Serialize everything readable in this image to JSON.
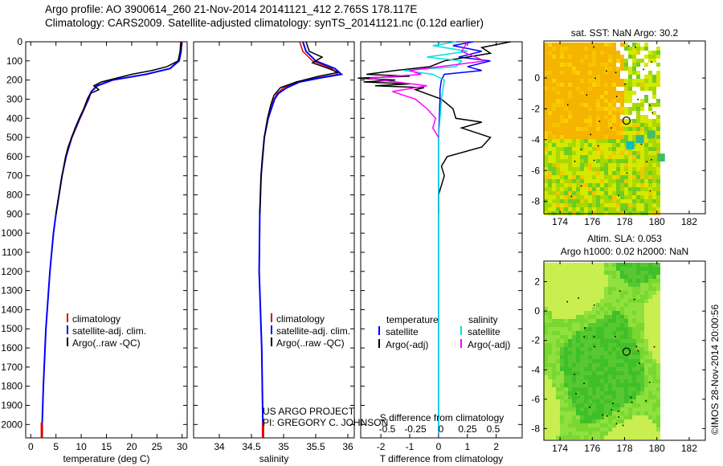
{
  "header": {
    "line1": "Argo profile: AO 3900614_260 21-Nov-2014 20141121_412 2.765S 178.117E",
    "line2": "Climatology: CARS2009. Satellite-adjusted climatology: synTS_20141121.nc (0.12d earlier)"
  },
  "credit": "©IMOS 28-Nov-2014 20:00:56",
  "project": {
    "line1": "US ARGO PROJECT",
    "line2": "PI: GREGORY C. JOHNSON"
  },
  "colors": {
    "climatology": "#e00000",
    "satellite": "#0000ff",
    "argo": "#000000",
    "sat_salinity": "#00e0e0",
    "argo_salinity": "#ff00ff"
  },
  "chart_data": [
    {
      "type": "line",
      "panel": "temperature",
      "xlabel": "temperature (deg C)",
      "ylabel": "",
      "xlim": [
        -1,
        31
      ],
      "ylim": [
        2070,
        0
      ],
      "xticks": [
        0,
        5,
        10,
        15,
        20,
        25,
        30
      ],
      "yticks": [
        0,
        100,
        200,
        300,
        400,
        500,
        600,
        700,
        800,
        900,
        1000,
        1100,
        1200,
        1300,
        1400,
        1500,
        1600,
        1700,
        1800,
        1900,
        2000
      ],
      "legend": [
        "climatology",
        "satellite-adj. clim.",
        "Argo(..raw -QC)"
      ],
      "series": [
        {
          "name": "climatology",
          "depth": [
            0,
            50,
            100,
            140,
            170,
            200,
            230,
            260,
            300,
            400,
            500,
            600,
            700,
            800,
            900,
            1000,
            1200,
            1500,
            1800,
            2050
          ],
          "values": [
            29.7,
            29.6,
            29.3,
            27.5,
            23,
            16,
            13,
            12,
            11.5,
            9.8,
            8.2,
            7.0,
            6.2,
            5.6,
            5.0,
            4.5,
            3.8,
            3.0,
            2.5,
            2.2
          ]
        },
        {
          "name": "satellite-adj. clim.",
          "depth": [
            0,
            50,
            100,
            140,
            170,
            200,
            230,
            260,
            300,
            400,
            500,
            600,
            700,
            800,
            900,
            1000,
            1200,
            1500,
            1800,
            2050
          ],
          "values": [
            29.9,
            29.8,
            29.4,
            27.6,
            22.8,
            16.2,
            13.2,
            12.0,
            11.4,
            9.7,
            8.1,
            7.0,
            6.2,
            5.6,
            5.0,
            4.5,
            3.8,
            3.0,
            2.5,
            2.2
          ]
        },
        {
          "name": "Argo(..raw -QC)",
          "depth": [
            0,
            50,
            100,
            130,
            150,
            170,
            190,
            210,
            230,
            250,
            270,
            300,
            350,
            400,
            450,
            500,
            550,
            600,
            700,
            800,
            900
          ],
          "values": [
            29.8,
            29.6,
            29.2,
            27,
            24,
            20,
            17,
            14,
            12.5,
            13.5,
            11.8,
            11.2,
            10.5,
            9.6,
            8.8,
            8.1,
            7.4,
            6.9,
            6.2,
            5.6,
            5.0
          ]
        }
      ]
    },
    {
      "type": "line",
      "panel": "salinity",
      "xlabel": "salinity",
      "xlim": [
        33.6,
        36.1
      ],
      "ylim": [
        2070,
        0
      ],
      "xticks": [
        34,
        34.5,
        35,
        35.5,
        36
      ],
      "legend": [
        "climatology",
        "satellite-adj. clim.",
        "Argo(..raw -QC)"
      ],
      "series": [
        {
          "name": "climatology",
          "depth": [
            0,
            50,
            100,
            140,
            170,
            190,
            210,
            240,
            270,
            300,
            400,
            500,
            700,
            900,
            1200,
            1600,
            2050
          ],
          "values": [
            35.25,
            35.3,
            35.45,
            35.75,
            35.85,
            35.5,
            35.2,
            35.0,
            34.9,
            34.85,
            34.75,
            34.7,
            34.65,
            34.63,
            34.62,
            34.66,
            34.68
          ]
        },
        {
          "name": "satellite-adj. clim.",
          "depth": [
            0,
            50,
            100,
            140,
            170,
            190,
            210,
            240,
            270,
            300,
            400,
            500,
            700,
            900,
            1200,
            1600,
            2050
          ],
          "values": [
            35.3,
            35.35,
            35.5,
            35.8,
            35.9,
            35.55,
            35.25,
            35.05,
            34.92,
            34.86,
            34.76,
            34.7,
            34.65,
            34.63,
            34.62,
            34.66,
            34.68
          ]
        },
        {
          "name": "Argo(..raw -QC)",
          "depth": [
            0,
            50,
            80,
            110,
            140,
            160,
            180,
            210,
            240,
            280,
            330,
            400,
            500,
            600,
            700,
            800,
            900
          ],
          "values": [
            35.35,
            35.4,
            35.6,
            35.45,
            35.7,
            35.85,
            35.55,
            35.2,
            34.95,
            34.85,
            34.8,
            34.75,
            34.7,
            34.67,
            34.65,
            34.64,
            34.63
          ]
        }
      ]
    },
    {
      "type": "line",
      "panel": "difference",
      "xlabel": "T difference from climatology",
      "xlabel2": "S difference from climatology",
      "xlim": [
        -2.7,
        2.9
      ],
      "ylim": [
        2070,
        0
      ],
      "xticks": [
        -2,
        -1,
        0,
        1,
        2
      ],
      "xticks_s": [
        "-0.5",
        "-0.25",
        "0",
        "0.25",
        "0.5"
      ],
      "legend_headers": [
        "temperature",
        "salinity"
      ],
      "legend": [
        "satellite",
        "Argo(-adj)",
        "satellite",
        "Argo(-adj)"
      ],
      "series": [
        {
          "name": "satellite",
          "depth": [
            0,
            20,
            50,
            80,
            100,
            130,
            150,
            170,
            200,
            250,
            300,
            500,
            1000,
            1500,
            2050
          ],
          "values": [
            1.2,
            0.5,
            1.5,
            0.7,
            1.8,
            1.0,
            1.5,
            0.2,
            0.1,
            0.05,
            0.05,
            0,
            0,
            0,
            0
          ]
        },
        {
          "name": "Argo(-adj)",
          "depth": [
            0,
            30,
            60,
            100,
            130,
            150,
            170,
            180,
            190,
            200,
            210,
            220,
            230,
            240,
            250,
            300,
            350,
            400,
            420,
            450,
            500,
            550,
            600,
            650,
            700,
            800,
            900
          ],
          "values": [
            2.5,
            1.5,
            1.8,
            0.2,
            -0.3,
            -1.5,
            -2.5,
            -1.0,
            -2.8,
            -1.5,
            -2.6,
            -1.0,
            -2.2,
            -0.5,
            -0.8,
            0.1,
            0.5,
            0.6,
            1.5,
            0.8,
            1.8,
            1.5,
            0.3,
            0.1,
            0.2,
            0,
            0
          ]
        },
        {
          "name": "satellite",
          "depth": [
            0,
            20,
            50,
            80,
            100,
            130,
            150,
            170,
            200,
            300,
            500,
            1000,
            2050
          ],
          "values": [
            0.3,
            -0.1,
            0.5,
            -0.2,
            0.4,
            0.3,
            -0.6,
            -0.1,
            0.1,
            0.05,
            0,
            0,
            0
          ]
        },
        {
          "name": "Argo(-adj)",
          "depth": [
            0,
            50,
            100,
            150,
            170,
            190,
            200,
            230,
            260,
            300,
            350,
            400,
            450,
            500
          ],
          "values": [
            0.5,
            0.4,
            0.8,
            -0.5,
            -0.3,
            -1.2,
            -1.0,
            -0.2,
            -0.8,
            -0.4,
            -0.2,
            -0.05,
            -0.1,
            0
          ]
        }
      ]
    },
    {
      "type": "heatmap",
      "panel": "sst_map",
      "title": "sat. SST: NaN Argo: 30.2",
      "xticks": [
        174,
        176,
        178,
        180,
        182
      ],
      "yticks": [
        0,
        -2,
        -4,
        -6,
        -8
      ],
      "xlim": [
        173,
        183
      ],
      "ylim": [
        -8.8,
        2.4
      ],
      "marker": [
        178.117,
        -2.765
      ]
    },
    {
      "type": "heatmap",
      "panel": "sla_map",
      "title": "Altim. SLA: 0.053",
      "subtitle": "Argo h1000: 0.02 h2000: NaN",
      "xticks": [
        174,
        176,
        178,
        180,
        182
      ],
      "yticks": [
        2,
        0,
        -2,
        -4,
        -6,
        -8
      ],
      "xlim": [
        173,
        183
      ],
      "ylim": [
        -8.8,
        3.4
      ],
      "marker": [
        178.117,
        -2.765
      ]
    }
  ]
}
